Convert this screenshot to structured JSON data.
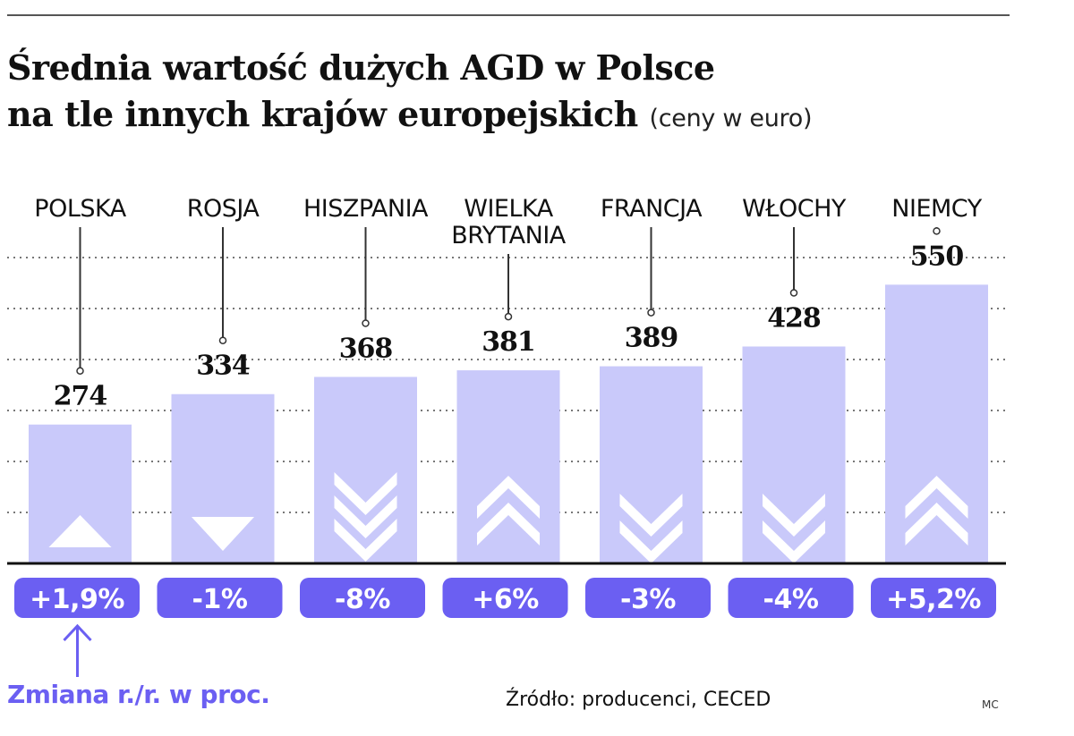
{
  "title": {
    "line1": "Średnia wartość dużych AGD w Polsce",
    "line2": "na tle innych krajów europejskich",
    "subtitle": "(ceny w euro)"
  },
  "note": "Zmiana r./r. w proc.",
  "source": "Źródło: producenci, CECED",
  "author": "MC",
  "colors": {
    "bar": "#c9c9fa",
    "badge": "#6b5ff2",
    "note": "#6b5ff2",
    "axis": "#111111",
    "grid": "#777777"
  },
  "chart_data": {
    "type": "bar",
    "categories": [
      "POLSKA",
      "ROSJA",
      "HISZPANIA",
      "WIELKA BRYTANIA",
      "FRANCJA",
      "WŁOCHY",
      "NIEMCY"
    ],
    "label_lines": [
      [
        "POLSKA"
      ],
      [
        "ROSJA"
      ],
      [
        "HISZPANIA"
      ],
      [
        "WIELKA",
        "BRYTANIA"
      ],
      [
        "FRANCJA"
      ],
      [
        "WŁOCHY"
      ],
      [
        "NIEMCY"
      ]
    ],
    "values": [
      274,
      334,
      368,
      381,
      389,
      428,
      550
    ],
    "value_labels": [
      "274",
      "334",
      "368",
      "381",
      "389",
      "428",
      "550"
    ],
    "change_labels": [
      "+1,9%",
      "-1%",
      "-8%",
      "+6%",
      "-3%",
      "-4%",
      "+5,2%"
    ],
    "change_direction": [
      "up",
      "down",
      "down",
      "up",
      "down",
      "down",
      "up"
    ],
    "change_strength": [
      1,
      1,
      3,
      2,
      2,
      2,
      2
    ],
    "ylim": [
      0,
      600
    ],
    "grid": true
  }
}
